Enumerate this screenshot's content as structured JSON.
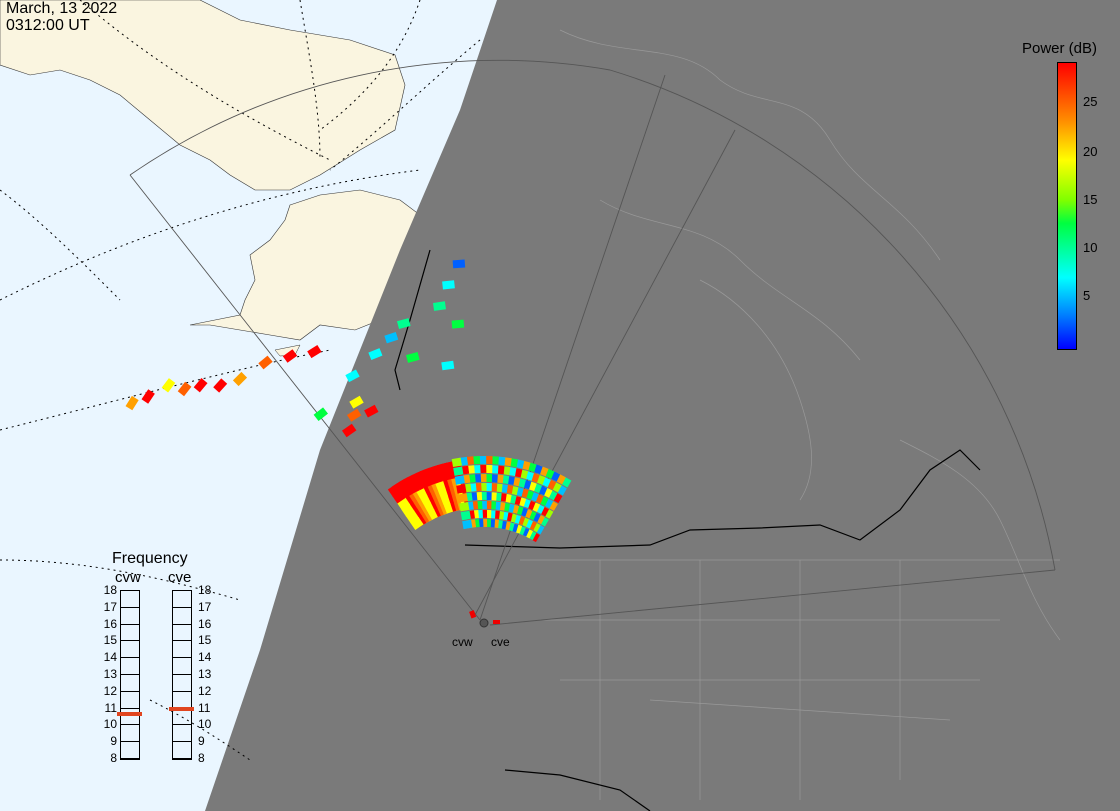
{
  "header": {
    "date": "March, 13 2022",
    "time": "0312:00 UT"
  },
  "colorbar": {
    "title": "Power (dB)",
    "ticks": [
      "25",
      "20",
      "15",
      "10",
      "5"
    ],
    "range": [
      0,
      30
    ]
  },
  "frequency_panel": {
    "title": "Frequency",
    "radars": [
      {
        "name": "cvw",
        "selected_mhz": 10.6
      },
      {
        "name": "cve",
        "selected_mhz": 10.9
      }
    ],
    "scale": [
      "18",
      "17",
      "16",
      "15",
      "14",
      "13",
      "12",
      "11",
      "10",
      "9",
      "8"
    ]
  },
  "sites": [
    {
      "name": "cvw"
    },
    {
      "name": "cve"
    }
  ],
  "colors": {
    "ocean": "#eaf6ff",
    "land_day": "#faf5e0",
    "night": "#7a7a7a",
    "borders": "#000000",
    "accent": "#e0451f"
  }
}
